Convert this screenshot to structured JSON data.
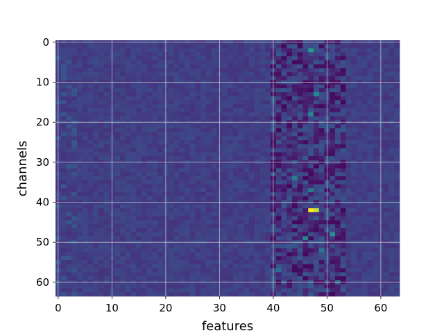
{
  "chart_data": {
    "type": "heatmap",
    "title": "",
    "xlabel": "features",
    "ylabel": "channels",
    "rows": 64,
    "cols": 64,
    "xlim": [
      -0.5,
      63.5
    ],
    "ylim": [
      63.5,
      -0.5
    ],
    "xticks": [
      0,
      10,
      20,
      30,
      40,
      50,
      60
    ],
    "yticks": [
      0,
      10,
      20,
      30,
      40,
      50,
      60
    ],
    "grid": true,
    "colormap": "viridis",
    "hotspots": [
      {
        "row": 42,
        "col": 47,
        "level": 1.0
      },
      {
        "row": 42,
        "col": 48,
        "level": 0.95
      },
      {
        "row": 2,
        "col": 47,
        "level": 0.7
      },
      {
        "row": 13,
        "col": 48,
        "level": 0.6
      },
      {
        "row": 18,
        "col": 47,
        "level": 0.6
      },
      {
        "row": 34,
        "col": 44,
        "level": 0.55
      },
      {
        "row": 37,
        "col": 47,
        "level": 0.55
      },
      {
        "row": 48,
        "col": 51,
        "level": 0.65
      },
      {
        "row": 49,
        "col": 46,
        "level": 0.6
      },
      {
        "row": 52,
        "col": 49,
        "level": 0.5
      },
      {
        "row": 57,
        "col": 41,
        "level": 0.45
      },
      {
        "row": 60,
        "col": 52,
        "level": 0.45
      }
    ],
    "colors": {
      "background": "#3b528b",
      "grid": "#dcdcdc",
      "max": "#fde725"
    }
  }
}
